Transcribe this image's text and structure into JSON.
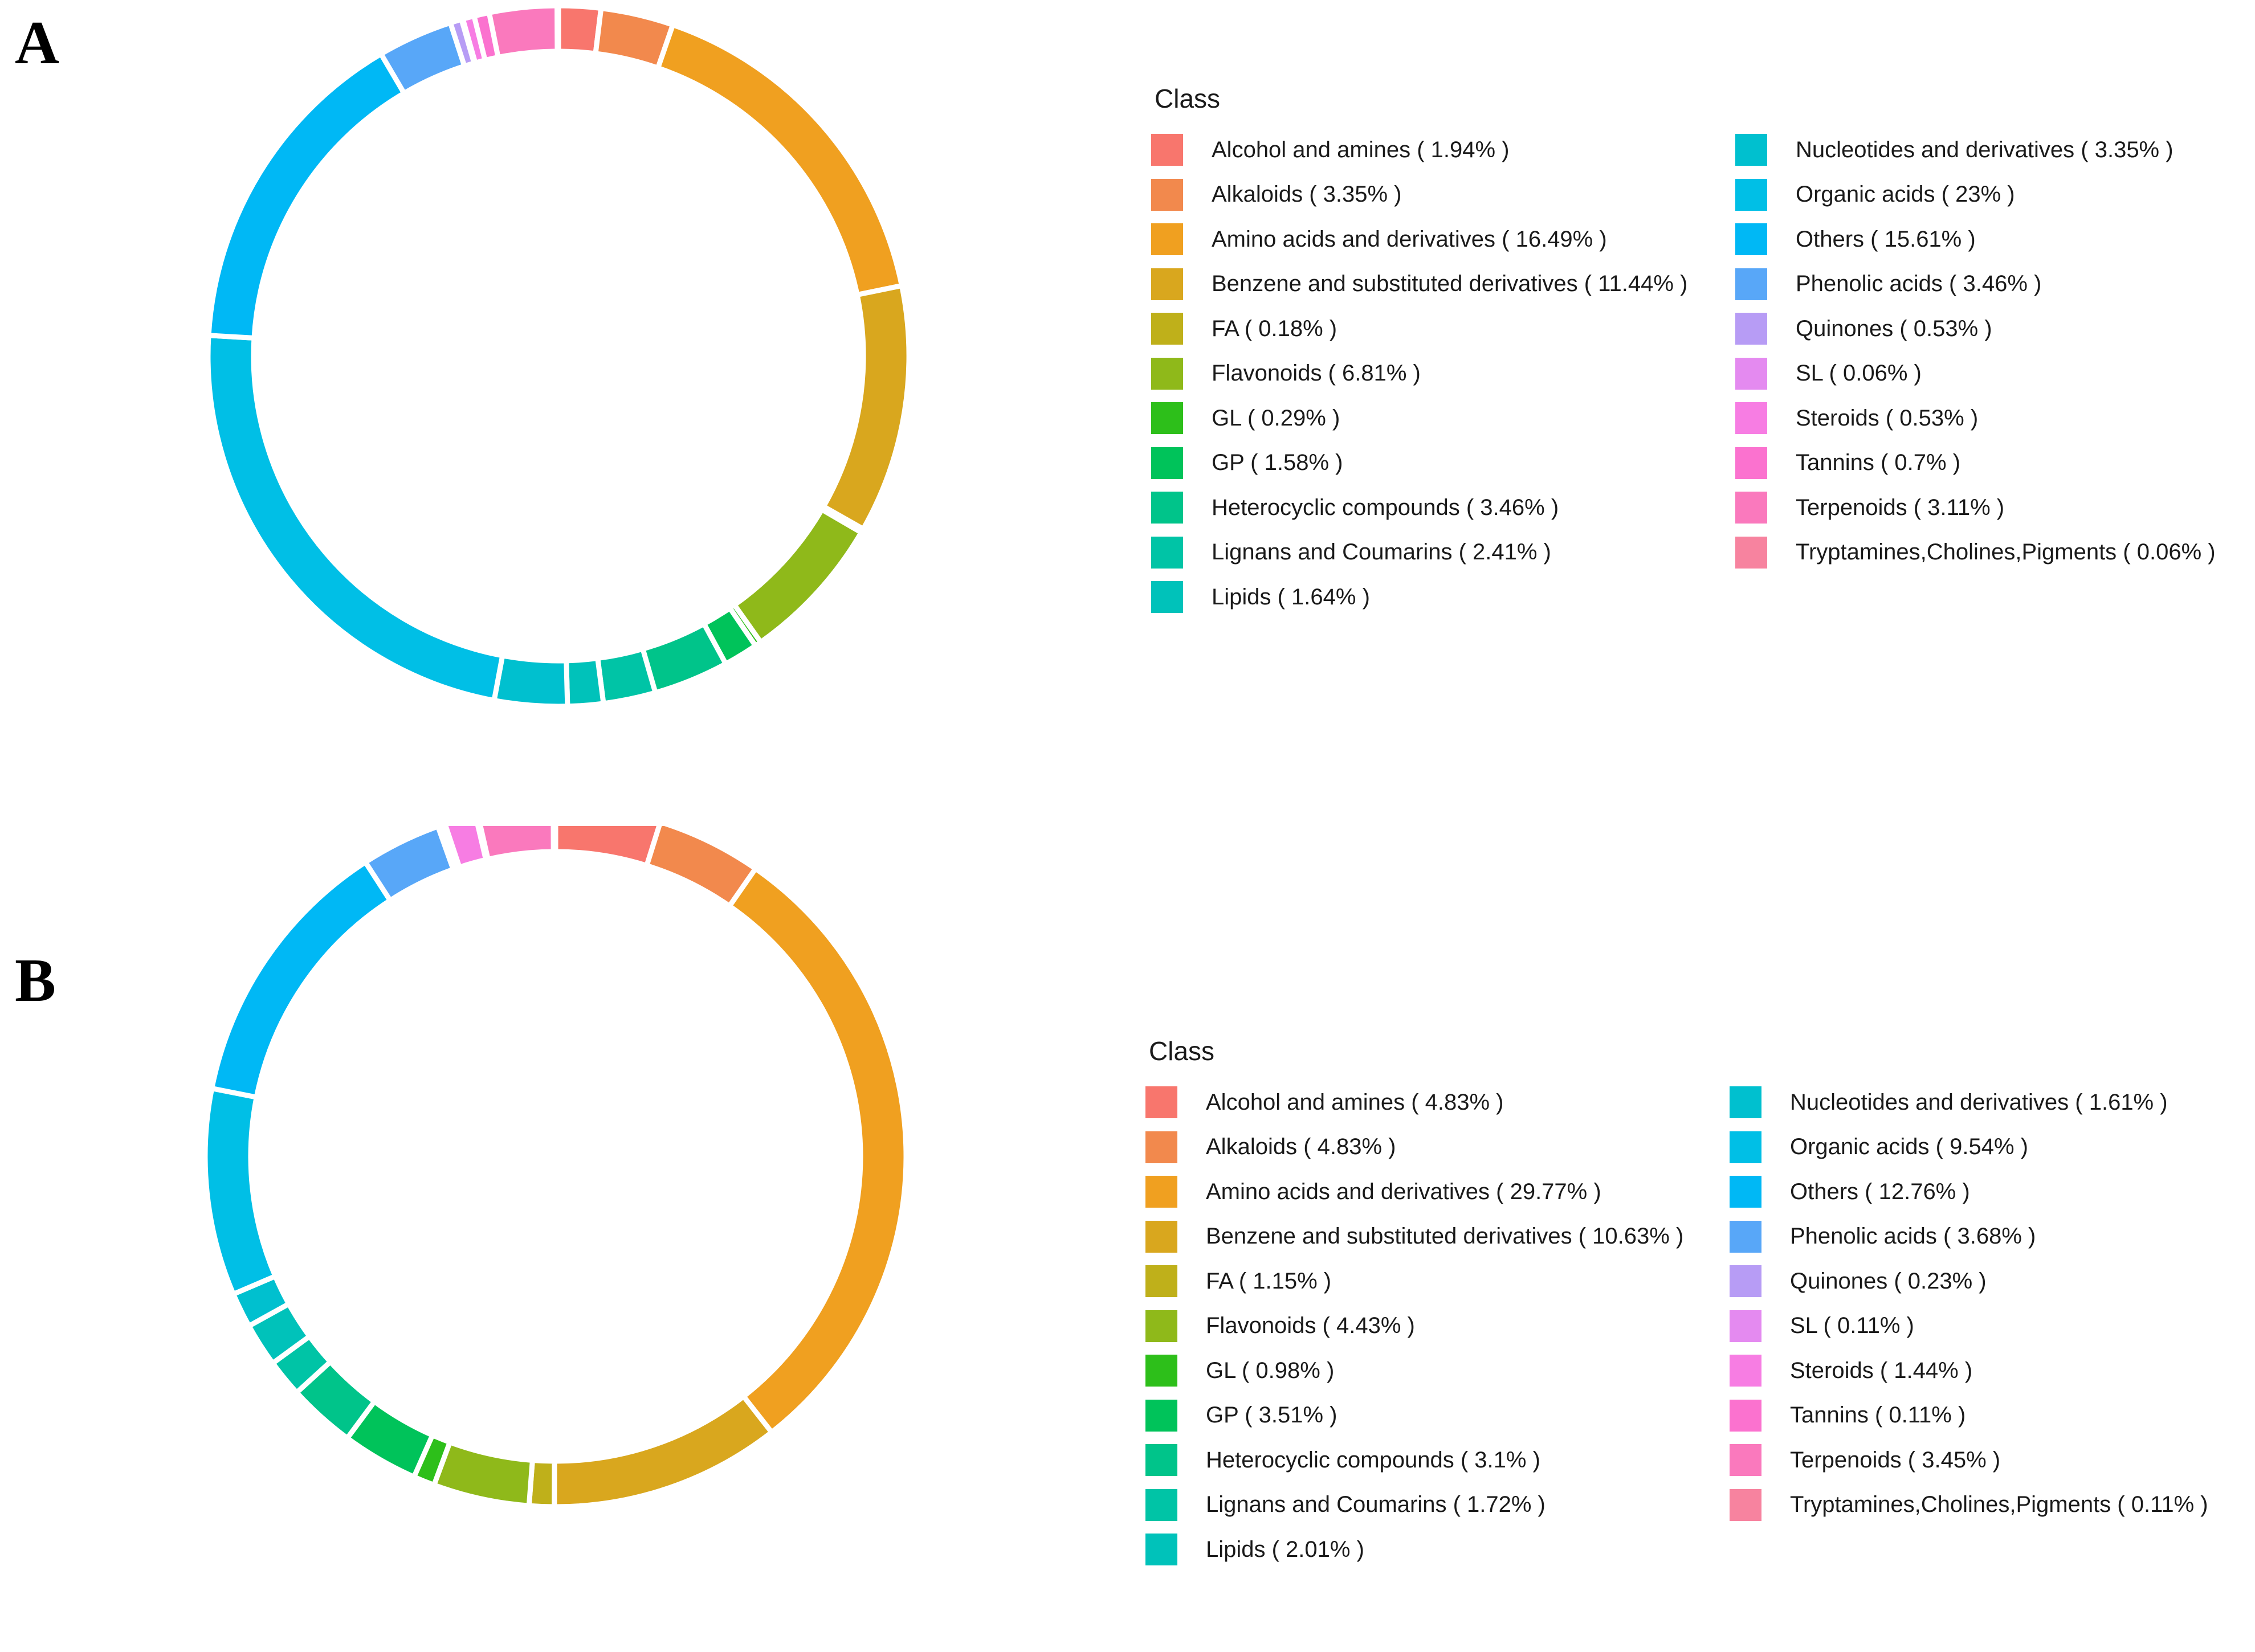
{
  "figure": {
    "panels": [
      {
        "letter": "A",
        "legend_title": "Class"
      },
      {
        "letter": "B",
        "legend_title": "Class"
      }
    ]
  },
  "chart_data": [
    {
      "type": "pie",
      "subtype": "donut",
      "panel": "A",
      "legend_title": "Class",
      "categories": [
        "Alcohol and amines",
        "Alkaloids",
        "Amino acids and derivatives",
        "Benzene and substituted derivatives",
        "FA",
        "Flavonoids",
        "GL",
        "GP",
        "Heterocyclic compounds",
        "Lignans and Coumarins",
        "Lipids",
        "Nucleotides and derivatives",
        "Organic acids",
        "Others",
        "Phenolic acids",
        "Quinones",
        "SL",
        "Steroids",
        "Tannins",
        "Terpenoids",
        "Tryptamines,Cholines,Pigments"
      ],
      "values": [
        1.94,
        3.35,
        16.49,
        11.44,
        0.18,
        6.81,
        0.29,
        1.58,
        3.46,
        2.41,
        1.64,
        3.35,
        23,
        15.61,
        3.46,
        0.53,
        0.06,
        0.53,
        0.7,
        3.11,
        0.06
      ],
      "labels": [
        "Alcohol and amines ( 1.94% )",
        "Alkaloids ( 3.35% )",
        "Amino acids and derivatives ( 16.49% )",
        "Benzene and substituted derivatives ( 11.44% )",
        "FA ( 0.18% )",
        "Flavonoids ( 6.81% )",
        "GL ( 0.29% )",
        "GP ( 1.58% )",
        "Heterocyclic compounds ( 3.46% )",
        "Lignans and Coumarins ( 2.41% )",
        "Lipids ( 1.64% )",
        "Nucleotides and derivatives ( 3.35% )",
        "Organic acids ( 23% )",
        "Others ( 15.61% )",
        "Phenolic acids ( 3.46% )",
        "Quinones ( 0.53% )",
        "SL ( 0.06% )",
        "Steroids ( 0.53% )",
        "Tannins ( 0.7% )",
        "Terpenoids ( 3.11% )",
        "Tryptamines,Cholines,Pigments ( 0.06% )"
      ],
      "colors": [
        "#F8766D",
        "#F2894D",
        "#F0A020",
        "#D9A71E",
        "#BFB01A",
        "#8FB91A",
        "#2DBF1A",
        "#00C35A",
        "#00C48A",
        "#00C4A6",
        "#00C2BA",
        "#00C0CF",
        "#00BFE6",
        "#00B8F5",
        "#58A7F8",
        "#B79CF5",
        "#E48AF0",
        "#F77DE3",
        "#FB72CF",
        "#FA79BD",
        "#F7839F"
      ]
    },
    {
      "type": "pie",
      "subtype": "donut",
      "panel": "B",
      "legend_title": "Class",
      "categories": [
        "Alcohol and amines",
        "Alkaloids",
        "Amino acids and derivatives",
        "Benzene and substituted derivatives",
        "FA",
        "Flavonoids",
        "GL",
        "GP",
        "Heterocyclic compounds",
        "Lignans and Coumarins",
        "Lipids",
        "Nucleotides and derivatives",
        "Organic acids",
        "Others",
        "Phenolic acids",
        "Quinones",
        "SL",
        "Steroids",
        "Tannins",
        "Terpenoids",
        "Tryptamines,Cholines,Pigments"
      ],
      "values": [
        4.83,
        4.83,
        29.77,
        10.63,
        1.15,
        4.43,
        0.98,
        3.51,
        3.1,
        1.72,
        2.01,
        1.61,
        9.54,
        12.76,
        3.68,
        0.23,
        0.11,
        1.44,
        0.11,
        3.45,
        0.11
      ],
      "labels": [
        "Alcohol and amines ( 4.83% )",
        "Alkaloids ( 4.83% )",
        "Amino acids and derivatives ( 29.77% )",
        "Benzene and substituted derivatives ( 10.63% )",
        "FA ( 1.15% )",
        "Flavonoids ( 4.43% )",
        "GL ( 0.98% )",
        "GP ( 3.51% )",
        "Heterocyclic compounds ( 3.1% )",
        "Lignans and Coumarins ( 1.72% )",
        "Lipids ( 2.01% )",
        "Nucleotides and derivatives ( 1.61% )",
        "Organic acids ( 9.54% )",
        "Others ( 12.76% )",
        "Phenolic acids ( 3.68% )",
        "Quinones ( 0.23% )",
        "SL ( 0.11% )",
        "Steroids ( 1.44% )",
        "Tannins ( 0.11% )",
        "Terpenoids ( 3.45% )",
        "Tryptamines,Cholines,Pigments ( 0.11% )"
      ],
      "colors": [
        "#F8766D",
        "#F2894D",
        "#F0A020",
        "#D9A71E",
        "#BFB01A",
        "#8FB91A",
        "#2DBF1A",
        "#00C35A",
        "#00C48A",
        "#00C4A6",
        "#00C2BA",
        "#00C0CF",
        "#00BFE6",
        "#00B8F5",
        "#58A7F8",
        "#B79CF5",
        "#E48AF0",
        "#F77DE3",
        "#FB72CF",
        "#FA79BD",
        "#F7839F"
      ]
    }
  ]
}
